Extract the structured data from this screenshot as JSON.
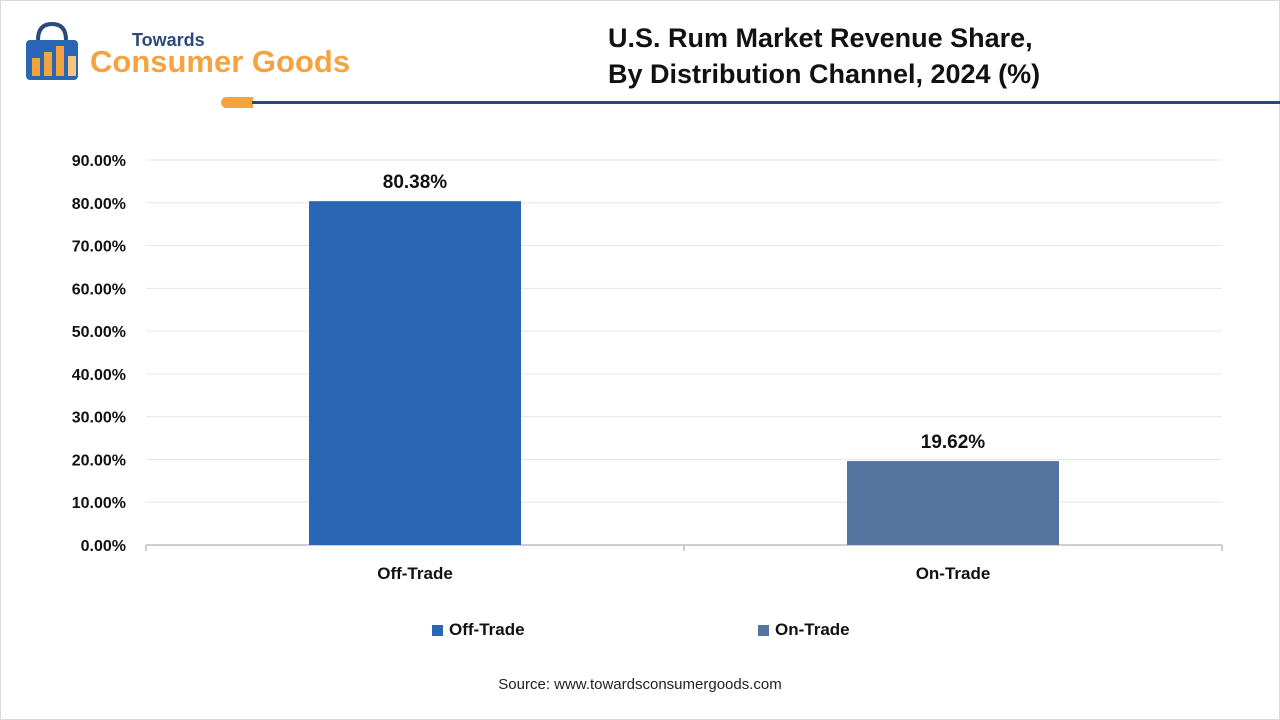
{
  "logo": {
    "line1": "Towards",
    "line2": "Consumer Goods"
  },
  "title": {
    "line1": "U.S. Rum Market Revenue Share,",
    "line2": "By Distribution Channel, 2024 (%)"
  },
  "colors": {
    "brand_navy": "#2b4a7a",
    "brand_orange": "#f4a340"
  },
  "chart_data": {
    "type": "bar",
    "categories": [
      "Off-Trade",
      "On-Trade"
    ],
    "values": [
      80.38,
      19.62
    ],
    "data_labels": [
      "80.38%",
      "19.62%"
    ],
    "colors": [
      "#2b66b4",
      "#55749f"
    ],
    "ylim": [
      0,
      90
    ],
    "yticks": [
      0,
      10,
      20,
      30,
      40,
      50,
      60,
      70,
      80,
      90
    ],
    "ytick_labels": [
      "0.00%",
      "10.00%",
      "20.00%",
      "30.00%",
      "40.00%",
      "50.00%",
      "60.00%",
      "70.00%",
      "80.00%",
      "90.00%"
    ],
    "grid": true,
    "legend_position": "bottom",
    "legend": [
      "Off-Trade",
      "On-Trade"
    ]
  },
  "source": "Source: www.towardsconsumergoods.com"
}
